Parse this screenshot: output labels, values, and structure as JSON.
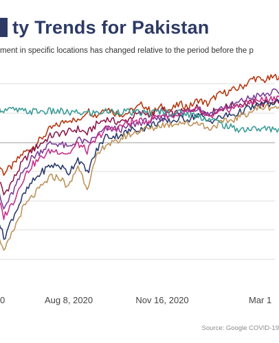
{
  "header": {
    "title": "ty Trends for Pakistan",
    "subtitle": "ment in specific locations has changed relative to the period before the p",
    "accent_color": "#2d3a66"
  },
  "footer": {
    "source": "Source: Google COVID-19"
  },
  "chart_data": {
    "type": "line",
    "title": "ty Trends for Pakistan",
    "xlabel": "",
    "ylabel": "",
    "x_ticks": [
      "0",
      "Aug 8, 2020",
      "Nov 16, 2020",
      "Mar 1"
    ],
    "grid": true,
    "colors": [
      "#b5380f",
      "#8b1a4a",
      "#7b3d96",
      "#c8308a",
      "#2b3a6b",
      "#bf9258",
      "#3a9c97"
    ],
    "series": [
      {
        "values": [
          -15,
          -25,
          -20,
          -12,
          -8,
          -2,
          5,
          8,
          12,
          10,
          18,
          14,
          20,
          16,
          15,
          18,
          22,
          16,
          20,
          18,
          22,
          20,
          25,
          22,
          28,
          30,
          32,
          35,
          40,
          38,
          40,
          42
        ]
      },
      {
        "values": [
          -20,
          -40,
          -30,
          -18,
          -10,
          -5,
          0,
          2,
          3,
          5,
          2,
          8,
          12,
          10,
          10,
          14,
          16,
          15,
          18,
          15,
          16,
          18,
          20,
          15,
          18,
          20,
          22,
          22,
          23,
          22,
          24,
          24
        ]
      },
      {
        "values": [
          -30,
          -50,
          -38,
          -25,
          -15,
          -10,
          -5,
          -5,
          -8,
          -2,
          -5,
          0,
          5,
          5,
          5,
          8,
          10,
          10,
          12,
          15,
          15,
          18,
          20,
          15,
          18,
          20,
          22,
          25,
          27,
          28,
          30,
          30
        ]
      },
      {
        "values": [
          -35,
          -55,
          -45,
          -30,
          -20,
          -15,
          -10,
          -10,
          -12,
          -5,
          -10,
          -2,
          5,
          5,
          8,
          10,
          10,
          12,
          15,
          14,
          15,
          16,
          18,
          12,
          15,
          18,
          20,
          22,
          24,
          25,
          26,
          28
        ]
      },
      {
        "values": [
          -45,
          -70,
          -55,
          -42,
          -32,
          -25,
          -20,
          -20,
          -25,
          -15,
          -25,
          -10,
          0,
          0,
          2,
          5,
          5,
          8,
          10,
          10,
          12,
          12,
          15,
          10,
          12,
          14,
          15,
          18,
          20,
          22,
          22,
          24
        ]
      },
      {
        "values": [
          -55,
          -80,
          -65,
          -50,
          -42,
          -35,
          -28,
          -28,
          -35,
          -20,
          -35,
          -15,
          -5,
          -5,
          0,
          2,
          5,
          5,
          8,
          8,
          10,
          8,
          10,
          5,
          8,
          10,
          12,
          15,
          18,
          20,
          20,
          20
        ]
      },
      {
        "values": [
          20,
          18,
          18,
          17,
          17,
          17,
          17,
          17,
          16,
          16,
          16,
          16,
          17,
          17,
          17,
          16,
          16,
          16,
          17,
          16,
          16,
          15,
          14,
          12,
          10,
          7,
          5,
          5,
          5,
          5,
          5,
          5
        ]
      }
    ]
  }
}
